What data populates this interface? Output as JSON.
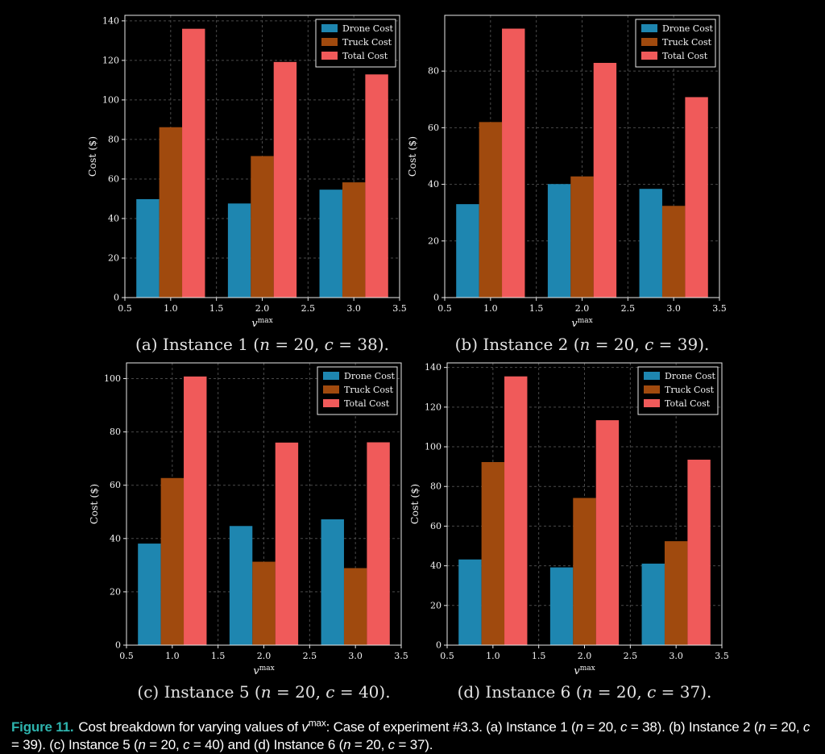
{
  "figure": {
    "caption_label": "Figure 11.",
    "caption_parts": [
      {
        "t": "Cost breakdown for varying values of "
      },
      {
        "t": "v",
        "i": true
      },
      {
        "t": "max",
        "sup": true
      },
      {
        "t": ": Case of experiment #3.3. (a) Instance 1 ("
      },
      {
        "t": "n",
        "i": true
      },
      {
        "t": " = 20, "
      },
      {
        "t": "c",
        "i": true
      },
      {
        "t": " = 38). (b) Instance 2 ("
      },
      {
        "t": "n",
        "i": true
      },
      {
        "t": " = 20, "
      },
      {
        "t": "c",
        "i": true
      },
      {
        "t": " = 39). (c) Instance 5 ("
      },
      {
        "t": "n",
        "i": true
      },
      {
        "t": " = 20, "
      },
      {
        "t": "c",
        "i": true
      },
      {
        "t": " = 40) and (d) Instance 6 ("
      },
      {
        "t": "n",
        "i": true
      },
      {
        "t": " = 20, "
      },
      {
        "t": "c",
        "i": true
      },
      {
        "t": " = 37)."
      }
    ]
  },
  "colors": {
    "background": "#000000",
    "grid": "#4a4a4a",
    "axis": "#e8e8e8",
    "text": "#f2f2f2",
    "caption_accent": "#2EB3AD",
    "subcaption": "#e3e3e3"
  },
  "chart_data": [
    {
      "id": "a",
      "type": "bar",
      "subcaption_parts": [
        {
          "t": "(a) Instance 1 ("
        },
        {
          "t": "n",
          "i": true
        },
        {
          "t": " = 20, "
        },
        {
          "t": "c",
          "i": true
        },
        {
          "t": " = 38)."
        }
      ],
      "x": [
        1.0,
        2.0,
        3.0
      ],
      "bar_width": 0.25,
      "series": [
        {
          "name": "Drone Cost",
          "color": "#1E86B0",
          "values": [
            49.8,
            47.6,
            54.6
          ]
        },
        {
          "name": "Truck Cost",
          "color": "#A04A0E",
          "values": [
            86.2,
            71.6,
            58.3
          ]
        },
        {
          "name": "Total Cost",
          "color": "#F05A5A",
          "values": [
            136.0,
            119.2,
            112.9
          ]
        }
      ],
      "ylabel": "Cost ($)",
      "xlabel_parts": [
        {
          "t": "v",
          "i": true
        },
        {
          "t": "max",
          "sup": true
        }
      ],
      "xlim": [
        0.5,
        3.5
      ],
      "xticks": [
        0.5,
        1.0,
        1.5,
        2.0,
        2.5,
        3.0,
        3.5
      ],
      "ylim": [
        0,
        142.8
      ],
      "yticks": [
        0,
        20,
        40,
        60,
        80,
        100,
        120,
        140
      ],
      "grid": true,
      "legend_position": "upper right"
    },
    {
      "id": "b",
      "type": "bar",
      "subcaption_parts": [
        {
          "t": "(b) Instance 2 ("
        },
        {
          "t": "n",
          "i": true
        },
        {
          "t": " = 20, "
        },
        {
          "t": "c",
          "i": true
        },
        {
          "t": " = 39)."
        }
      ],
      "x": [
        1.0,
        2.0,
        3.0
      ],
      "bar_width": 0.25,
      "series": [
        {
          "name": "Drone Cost",
          "color": "#1E86B0",
          "values": [
            33.0,
            40.1,
            38.4
          ]
        },
        {
          "name": "Truck Cost",
          "color": "#A04A0E",
          "values": [
            62.0,
            42.8,
            32.4
          ]
        },
        {
          "name": "Total Cost",
          "color": "#F05A5A",
          "values": [
            95.0,
            82.9,
            70.8
          ]
        }
      ],
      "ylabel": "Cost ($)",
      "xlabel_parts": [
        {
          "t": "v",
          "i": true
        },
        {
          "t": "max",
          "sup": true
        }
      ],
      "xlim": [
        0.5,
        3.5
      ],
      "xticks": [
        0.5,
        1.0,
        1.5,
        2.0,
        2.5,
        3.0,
        3.5
      ],
      "ylim": [
        0,
        99.7
      ],
      "yticks": [
        0,
        20,
        40,
        60,
        80
      ],
      "grid": true,
      "legend_position": "upper right"
    },
    {
      "id": "c",
      "type": "bar",
      "subcaption_parts": [
        {
          "t": "(c) Instance 5 ("
        },
        {
          "t": "n",
          "i": true
        },
        {
          "t": " = 20, "
        },
        {
          "t": "c",
          "i": true
        },
        {
          "t": " = 40)."
        }
      ],
      "x": [
        1.0,
        2.0,
        3.0
      ],
      "bar_width": 0.25,
      "series": [
        {
          "name": "Drone Cost",
          "color": "#1E86B0",
          "values": [
            38.1,
            44.7,
            47.2
          ]
        },
        {
          "name": "Truck Cost",
          "color": "#A04A0E",
          "values": [
            62.7,
            31.3,
            28.9
          ]
        },
        {
          "name": "Total Cost",
          "color": "#F05A5A",
          "values": [
            100.8,
            76.0,
            76.1
          ]
        }
      ],
      "ylabel": "Cost ($)",
      "xlabel_parts": [
        {
          "t": "v",
          "i": true
        },
        {
          "t": "max",
          "sup": true
        }
      ],
      "xlim": [
        0.5,
        3.5
      ],
      "xticks": [
        0.5,
        1.0,
        1.5,
        2.0,
        2.5,
        3.0,
        3.5
      ],
      "ylim": [
        0,
        105.9
      ],
      "yticks": [
        0,
        20,
        40,
        60,
        80,
        100
      ],
      "grid": true,
      "legend_position": "upper right"
    },
    {
      "id": "d",
      "type": "bar",
      "subcaption_parts": [
        {
          "t": "(d) Instance 6 ("
        },
        {
          "t": "n",
          "i": true
        },
        {
          "t": " = 20, "
        },
        {
          "t": "c",
          "i": true
        },
        {
          "t": " = 37)."
        }
      ],
      "x": [
        1.0,
        2.0,
        3.0
      ],
      "bar_width": 0.25,
      "series": [
        {
          "name": "Drone Cost",
          "color": "#1E86B0",
          "values": [
            43.2,
            39.2,
            41.1
          ]
        },
        {
          "name": "Truck Cost",
          "color": "#A04A0E",
          "values": [
            92.3,
            74.2,
            52.4
          ]
        },
        {
          "name": "Total Cost",
          "color": "#F05A5A",
          "values": [
            135.5,
            113.4,
            93.5
          ]
        }
      ],
      "ylabel": "Cost ($)",
      "xlabel_parts": [
        {
          "t": "v",
          "i": true
        },
        {
          "t": "max",
          "sup": true
        }
      ],
      "xlim": [
        0.5,
        3.5
      ],
      "xticks": [
        0.5,
        1.0,
        1.5,
        2.0,
        2.5,
        3.0,
        3.5
      ],
      "ylim": [
        0,
        142.3
      ],
      "yticks": [
        0,
        20,
        40,
        60,
        80,
        100,
        120,
        140
      ],
      "grid": true,
      "legend_position": "upper right"
    }
  ]
}
